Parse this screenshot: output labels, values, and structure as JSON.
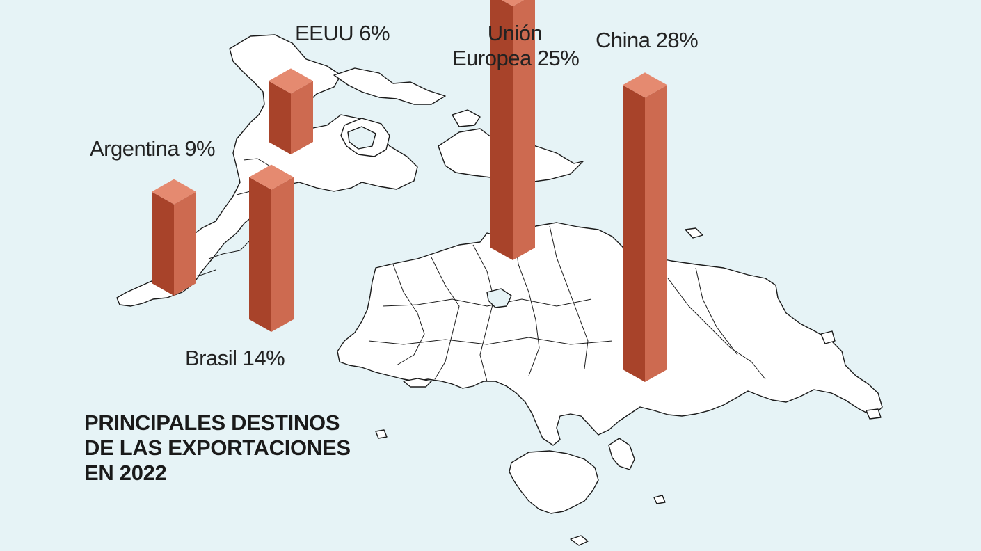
{
  "title_lines": [
    "PRINCIPALES DESTINOS",
    "DE LAS EXPORTACIONES",
    "EN 2022"
  ],
  "colors": {
    "background": "#e6f3f6",
    "land_fill": "#ffffff",
    "land_stroke": "#1a1a1a",
    "bar_top": "#e58a70",
    "bar_left": "#a8432a",
    "bar_right": "#cd6a50"
  },
  "chart_data": {
    "type": "bar",
    "style": "3d-columns-on-world-map",
    "unit": "%",
    "categories": [
      "EEUU",
      "Argentina",
      "Brasil",
      "Unión Europea",
      "China"
    ],
    "values": [
      6,
      9,
      14,
      25,
      28
    ],
    "labels": {
      "eeuu": "EEUU 6%",
      "argentina": "Argentina 9%",
      "brasil": "Brasil 14%",
      "ue_line1": "Unión",
      "ue_line2": "Europea 25%",
      "china": "China 28%"
    }
  }
}
